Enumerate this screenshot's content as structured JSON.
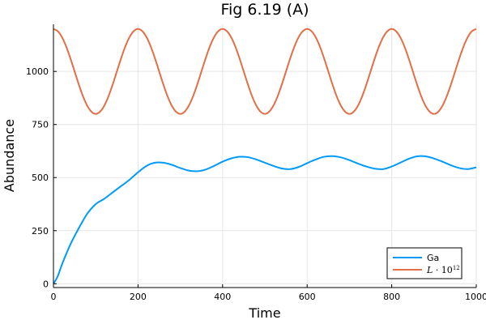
{
  "chart_data": {
    "type": "line",
    "title": "Fig 6.19 (A)",
    "xlabel": "Time",
    "ylabel": "Abundance",
    "xlim": [
      0,
      1000
    ],
    "ylim": [
      -18,
      1222
    ],
    "xticks": [
      0,
      200,
      400,
      600,
      800,
      1000
    ],
    "yticks": [
      0,
      250,
      500,
      750,
      1000
    ],
    "grid": true,
    "legend_position": "bottom-right",
    "series": [
      {
        "name": "Ga",
        "color": "#009AFA",
        "x": [
          0,
          10,
          20,
          40,
          60,
          80,
          100,
          120,
          140,
          160,
          180,
          200,
          220,
          240,
          260,
          280,
          300,
          320,
          340,
          360,
          380,
          400,
          420,
          440,
          460,
          480,
          500,
          520,
          540,
          560,
          580,
          600,
          620,
          640,
          660,
          680,
          700,
          720,
          740,
          760,
          780,
          800,
          820,
          840,
          860,
          880,
          900,
          920,
          940,
          960,
          980,
          1000
        ],
        "values": [
          0,
          35,
          90,
          185,
          262,
          330,
          375,
          400,
          430,
          460,
          490,
          525,
          555,
          570,
          570,
          560,
          545,
          533,
          530,
          538,
          555,
          575,
          590,
          598,
          596,
          585,
          570,
          555,
          543,
          540,
          550,
          568,
          585,
          598,
          601,
          595,
          582,
          566,
          552,
          542,
          540,
          552,
          570,
          588,
          600,
          600,
          590,
          575,
          558,
          545,
          540,
          548
        ]
      },
      {
        "name": "L · 10^12",
        "color": "#E26F46",
        "x": [
          0,
          10,
          20,
          30,
          40,
          50,
          60,
          70,
          80,
          90,
          100,
          110,
          120,
          130,
          140,
          150,
          160,
          170,
          180,
          190,
          200,
          210,
          220,
          230,
          240,
          250,
          260,
          270,
          280,
          290,
          300,
          310,
          320,
          330,
          340,
          350,
          360,
          370,
          380,
          390,
          400,
          410,
          420,
          430,
          440,
          450,
          460,
          470,
          480,
          490,
          500,
          510,
          520,
          530,
          540,
          550,
          560,
          570,
          580,
          590,
          600,
          610,
          620,
          630,
          640,
          650,
          660,
          670,
          680,
          690,
          700,
          710,
          720,
          730,
          740,
          750,
          760,
          770,
          780,
          790,
          800,
          810,
          820,
          830,
          840,
          850,
          860,
          870,
          880,
          890,
          900,
          910,
          920,
          930,
          940,
          950,
          960,
          970,
          980,
          990,
          1000
        ],
        "values": [
          1200,
          1190,
          1162,
          1118,
          1062,
          1000,
          938,
          882,
          838,
          810,
          800,
          810,
          838,
          882,
          938,
          1000,
          1062,
          1118,
          1162,
          1190,
          1200,
          1190,
          1162,
          1118,
          1062,
          1000,
          938,
          882,
          838,
          810,
          800,
          810,
          838,
          882,
          938,
          1000,
          1062,
          1118,
          1162,
          1190,
          1200,
          1190,
          1162,
          1118,
          1062,
          1000,
          938,
          882,
          838,
          810,
          800,
          810,
          838,
          882,
          938,
          1000,
          1062,
          1118,
          1162,
          1190,
          1200,
          1190,
          1162,
          1118,
          1062,
          1000,
          938,
          882,
          838,
          810,
          800,
          810,
          838,
          882,
          938,
          1000,
          1062,
          1118,
          1162,
          1190,
          1200,
          1190,
          1162,
          1118,
          1062,
          1000,
          938,
          882,
          838,
          810,
          800,
          810,
          838,
          882,
          938,
          1000,
          1062,
          1118,
          1162,
          1190,
          1200
        ]
      }
    ]
  }
}
